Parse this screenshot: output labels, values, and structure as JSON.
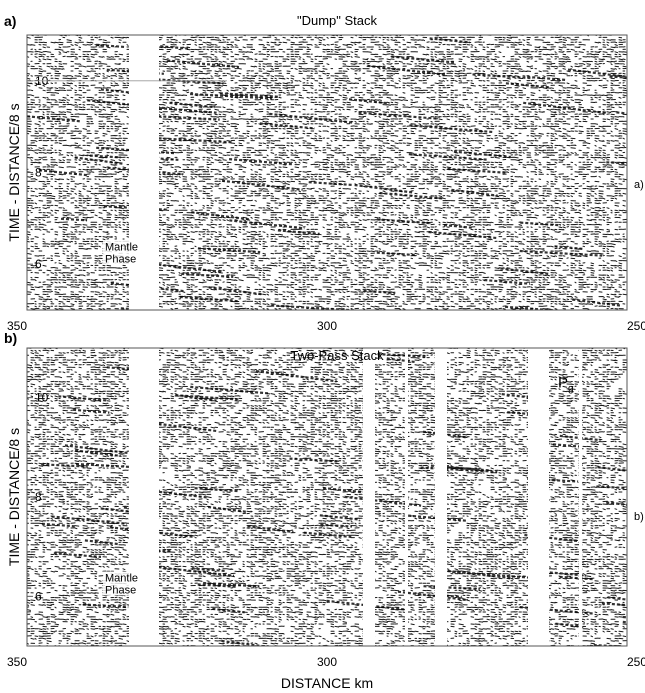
{
  "chart_data": [
    {
      "type": "seismic-record-section",
      "panel_label": "a)",
      "title": "\"Dump\" Stack",
      "ylabel": "TIME - DISTANCE/8 s",
      "xlabel": "",
      "xlim": [
        350,
        250
      ],
      "ylim": [
        5,
        11
      ],
      "x_ticks": [
        "350",
        "300",
        "250"
      ],
      "y_ticks": [
        "6",
        "8",
        "10"
      ],
      "data_gaps_km": [
        [
          333,
          328
        ]
      ],
      "annotations": [
        {
          "text": [
            "Mantle",
            "Phase"
          ],
          "x": 337,
          "y": 6.3
        }
      ],
      "side_label": "a)"
    },
    {
      "type": "seismic-record-section",
      "panel_label": "b)",
      "title": "Two-Pass Stack",
      "ylabel": "TIME - DISTANCE/8 s",
      "xlabel": "DISTANCE  km",
      "xlim": [
        350,
        250
      ],
      "ylim": [
        5,
        11
      ],
      "x_ticks": [
        "350",
        "300",
        "250"
      ],
      "y_ticks": [
        "6",
        "8",
        "10"
      ],
      "data_gaps_km": [
        [
          333,
          328
        ],
        [
          294,
          292
        ],
        [
          287,
          286.5
        ],
        [
          282,
          280
        ],
        [
          266.5,
          263
        ],
        [
          258,
          257.5
        ]
      ],
      "annotations": [
        {
          "text": [
            "Mantle",
            "Phase"
          ],
          "x": 337,
          "y": 6.3
        },
        {
          "text": [
            "P",
            "g"
          ],
          "x": 261.5,
          "y": 10.2
        }
      ],
      "side_label": "b)"
    }
  ]
}
